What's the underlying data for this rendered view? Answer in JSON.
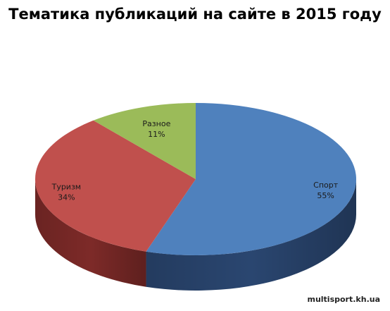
{
  "chart_data": {
    "type": "pie",
    "title": "Тематика публикаций на сайте в 2015 году",
    "slices": [
      {
        "label": "Спорт",
        "value": 55,
        "value_label": "55%",
        "color": "#4f81bd",
        "side": "#2a4670"
      },
      {
        "label": "Туризм",
        "value": 34,
        "value_label": "34%",
        "color": "#c0504d",
        "side": "#7d2a28"
      },
      {
        "label": "Разное",
        "value": 11,
        "value_label": "11%",
        "color": "#9bbb59",
        "side": "#5f7a2f"
      }
    ],
    "style": "3d"
  },
  "watermark": "multisport.kh.ua"
}
